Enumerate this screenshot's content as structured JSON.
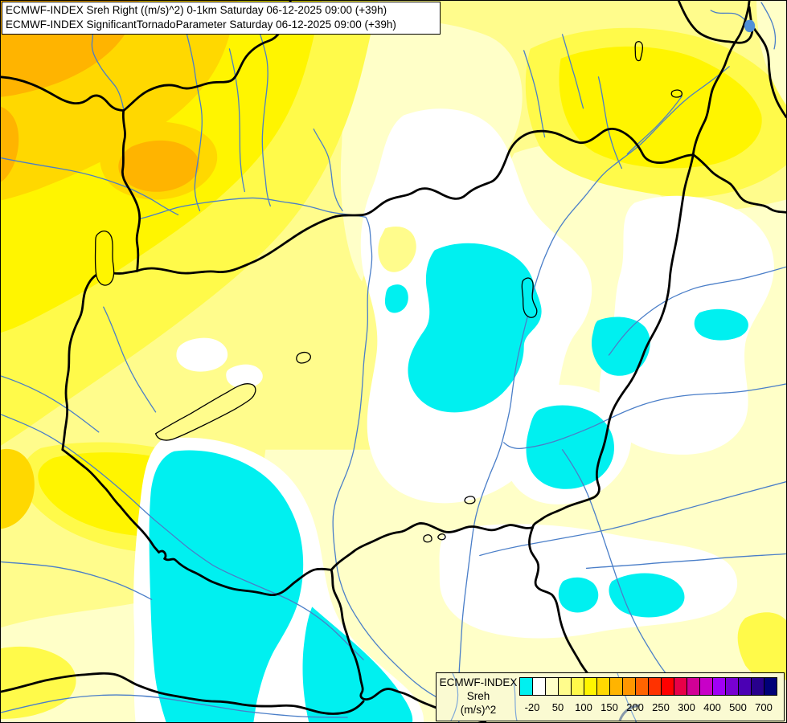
{
  "title_bar": {
    "line1": "ECMWF-INDEX Sreh Right ((m/s)^2) 0-1km Saturday 06-12-2025 09:00 (+39h)",
    "line2": "ECMWF-INDEX SignificantTornadoParameter Saturday 06-12-2025 09:00 (+39h)"
  },
  "legend": {
    "title": "ECMWF-INDEX",
    "parameter": "Sreh",
    "units": "(m/s)^2",
    "ticks": [
      "-20",
      "50",
      "100",
      "150",
      "200",
      "250",
      "300",
      "400",
      "500",
      "700"
    ],
    "palette": [
      "#00F0F0",
      "#FFFFFF",
      "#FFFFC8",
      "#FFFC8C",
      "#FFFA4A",
      "#FFF500",
      "#FFD800",
      "#FFB400",
      "#FF9600",
      "#FF6400",
      "#FF3200",
      "#FF0000",
      "#E80048",
      "#D20096",
      "#C800C8",
      "#A000F5",
      "#7800D2",
      "#4B00B4",
      "#28008C",
      "#000078"
    ],
    "background_color": "#FAFAD2"
  },
  "map": {
    "field_colors": {
      "negative_cyan": "#00F0F0",
      "near_zero_white": "#FFFFFF",
      "cream": "#FFFFC8",
      "pale_yellow": "#FFFC8C",
      "light_yellow": "#FFFA4A",
      "yellow": "#FFF500",
      "gold": "#FFD800",
      "orange": "#FFB400"
    },
    "line_colors": {
      "country_border": "#000000",
      "river": "#4A7EC8",
      "lake_outline": "#000000",
      "lake_water": "#5090D8"
    }
  }
}
